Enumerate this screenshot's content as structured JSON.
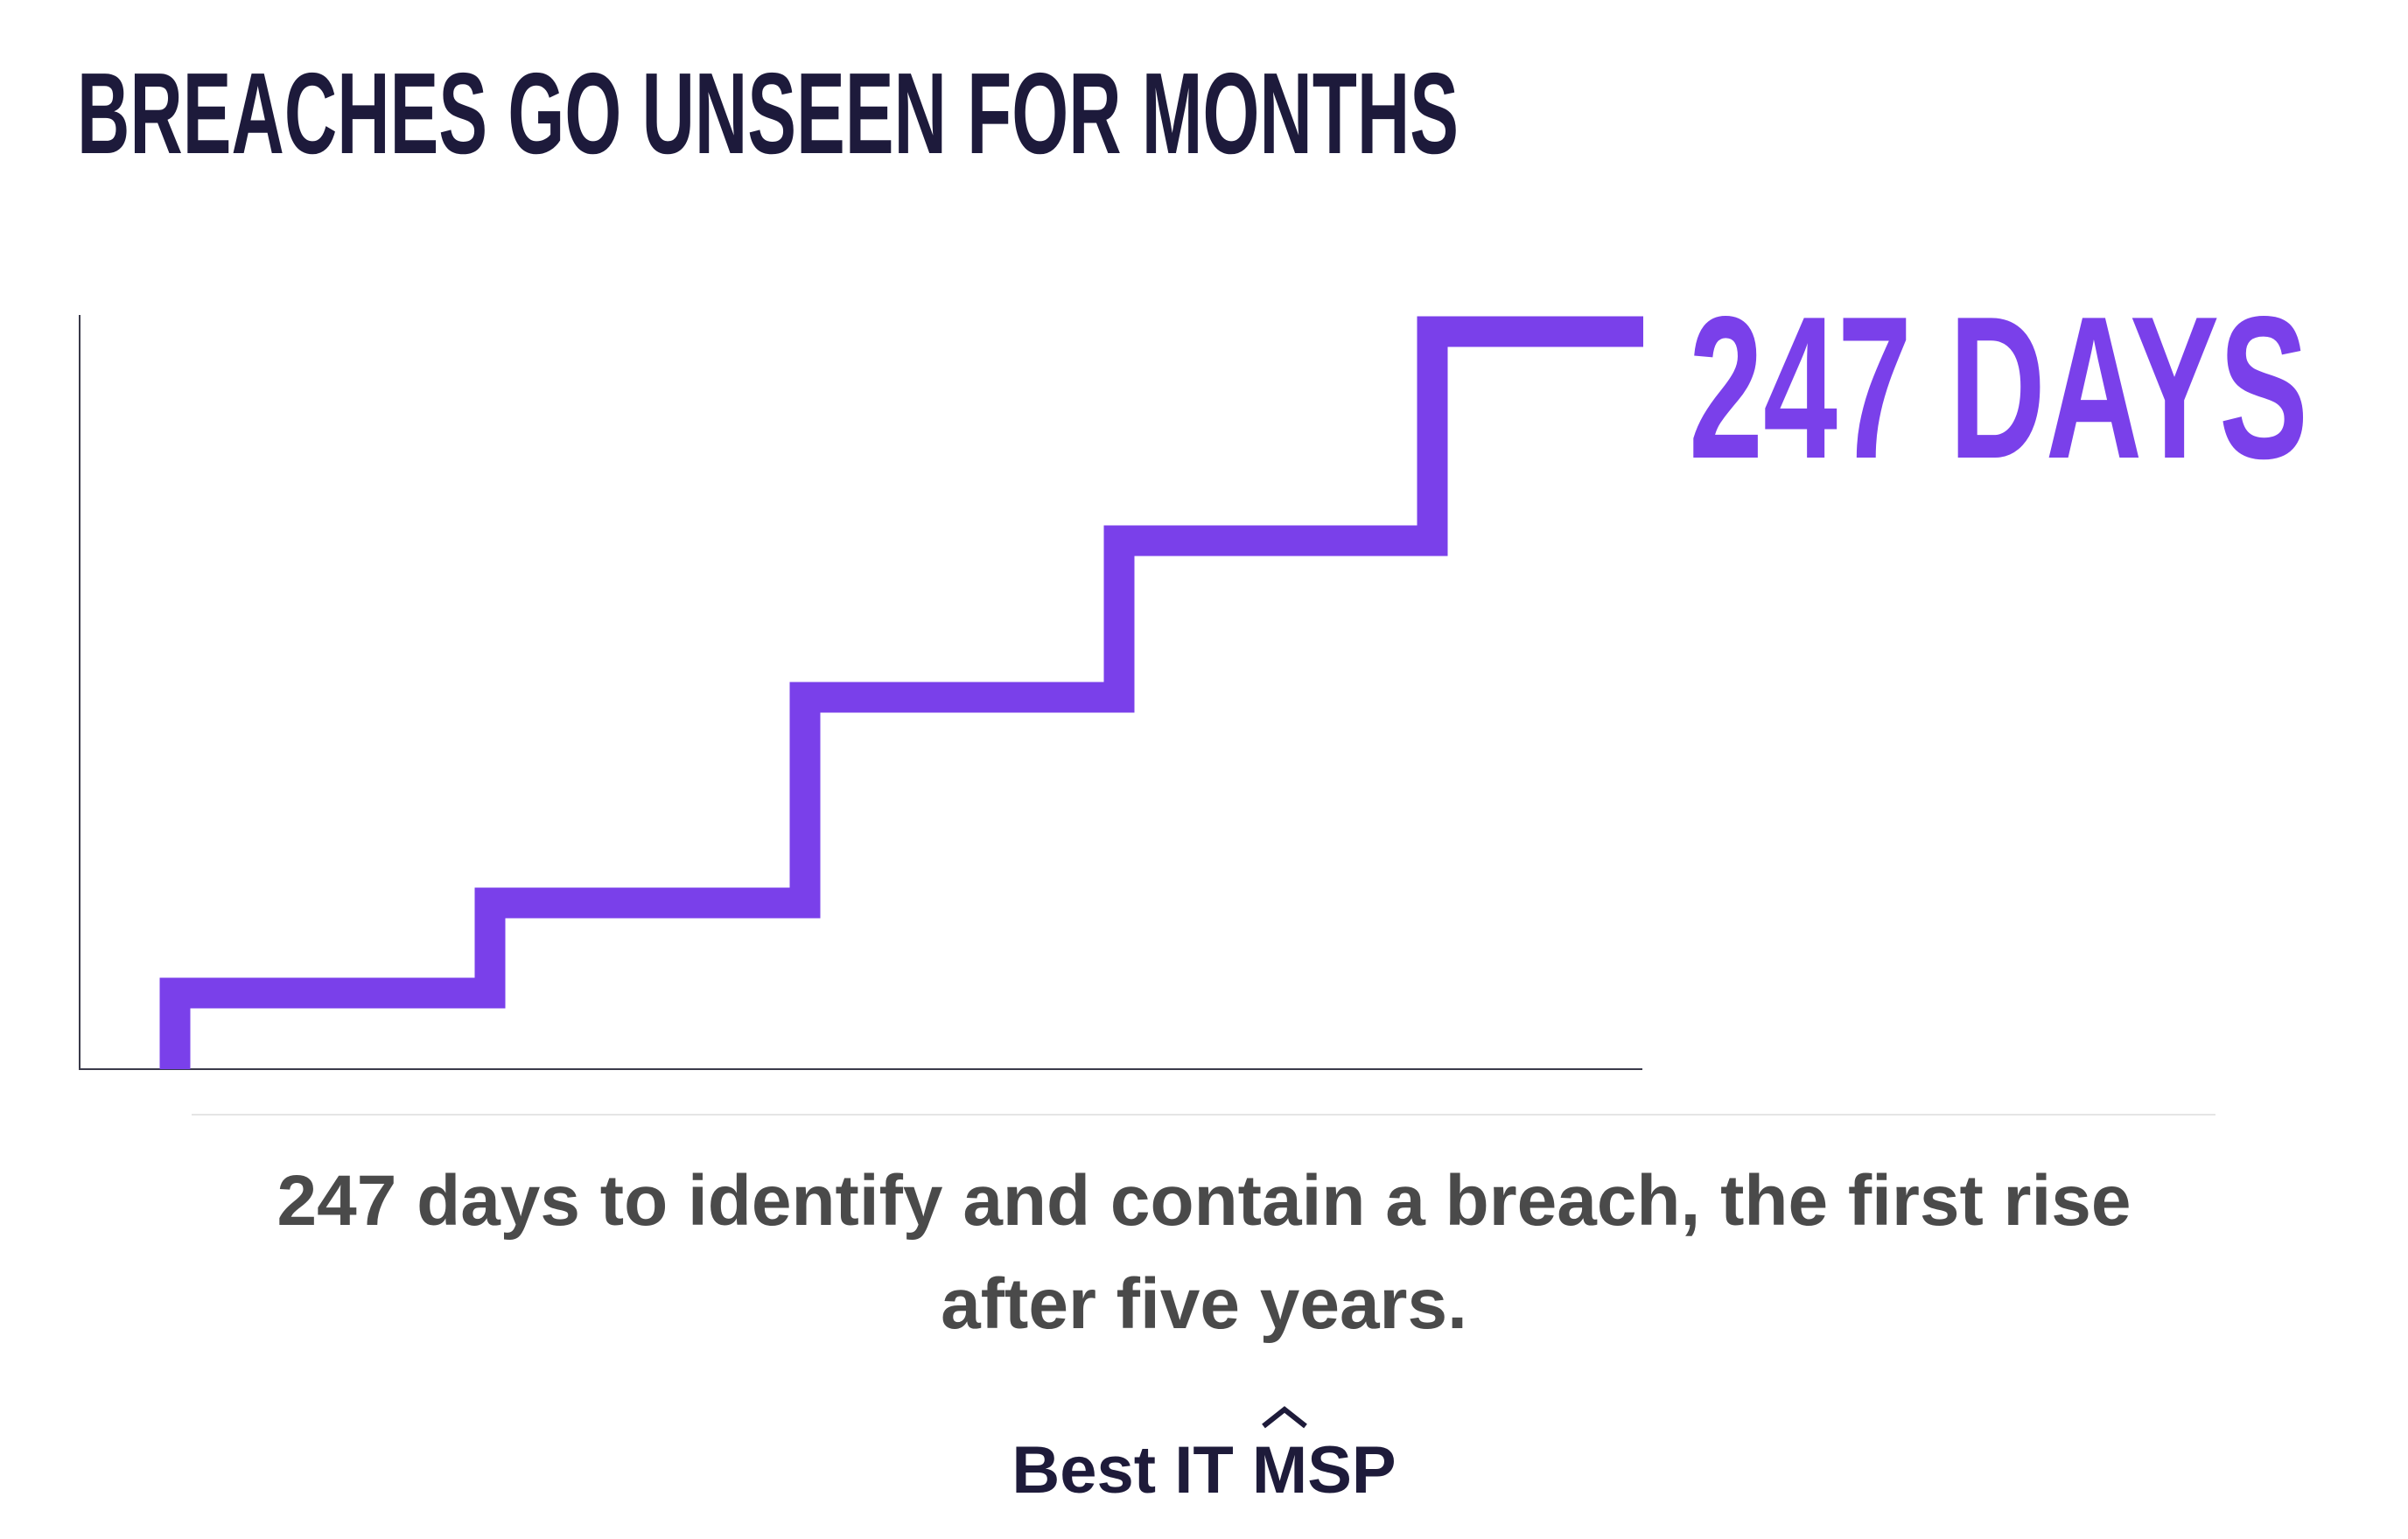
{
  "header": {
    "title": "BREACHES GO UNSEEN FOR MONTHS"
  },
  "callout": "247 DAYS",
  "caption": [
    "247 days to identify and contain a breach, the first rise",
    "after five years."
  ],
  "brand": "Best IT MSP"
}
